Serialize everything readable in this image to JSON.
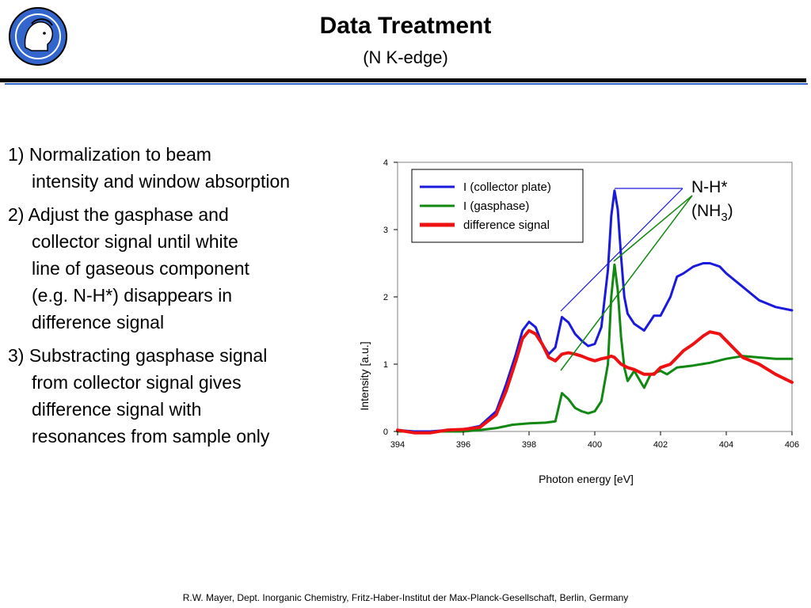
{
  "slide": {
    "title": "Data Treatment",
    "subtitle": "(N K-edge)",
    "footer": "R.W. Mayer, Dept. Inorganic Chemistry, Fritz-Haber-Institut der Max-Planck-Gesellschaft, Berlin, Germany",
    "logo_icon": "minerva-head-icon",
    "accent_color": "#3366cc"
  },
  "steps": [
    {
      "first": "1) Normalization to beam",
      "rest": [
        "intensity and window absorption"
      ]
    },
    {
      "first": "2) Adjust the gasphase and",
      "rest": [
        "collector signal until white",
        "line of gaseous component",
        "(e.g. N-H*) disappears in",
        "difference signal"
      ]
    },
    {
      "first": "3) Substracting gasphase signal",
      "rest": [
        "from collector signal gives",
        "difference signal with",
        "resonances from sample only"
      ]
    }
  ],
  "chart_data": {
    "type": "line",
    "xlabel": "Photon energy [eV]",
    "ylabel": "Intensity [a.u.]",
    "xlim": [
      394,
      406
    ],
    "ylim": [
      0,
      4
    ],
    "xticks": [
      394,
      396,
      398,
      400,
      402,
      404,
      406
    ],
    "yticks": [
      0,
      1,
      2,
      3,
      4
    ],
    "grid": false,
    "legend_placement": "top-left",
    "annotation": {
      "line1": "N-H*",
      "line2_main": "(NH",
      "line2_sub": "3",
      "line2_end": ")"
    },
    "series": [
      {
        "name": "I (collector plate)",
        "color": "#1a1adc",
        "x": [
          394,
          394.5,
          395,
          395.5,
          396,
          396.5,
          397,
          397.3,
          397.6,
          397.8,
          398,
          398.2,
          398.4,
          398.6,
          398.8,
          399,
          399.2,
          399.4,
          399.6,
          399.8,
          400,
          400.2,
          400.4,
          400.5,
          400.6,
          400.7,
          400.8,
          400.9,
          401,
          401.2,
          401.5,
          401.8,
          402,
          402.3,
          402.5,
          402.7,
          403,
          403.3,
          403.5,
          403.8,
          404,
          404.5,
          405,
          405.5,
          406
        ],
        "y": [
          0.02,
          0.0,
          0.0,
          0.02,
          0.03,
          0.08,
          0.3,
          0.7,
          1.15,
          1.5,
          1.63,
          1.55,
          1.3,
          1.15,
          1.25,
          1.7,
          1.62,
          1.45,
          1.35,
          1.27,
          1.3,
          1.55,
          2.4,
          3.2,
          3.58,
          3.3,
          2.6,
          2.0,
          1.75,
          1.6,
          1.5,
          1.72,
          1.72,
          2.0,
          2.3,
          2.35,
          2.45,
          2.5,
          2.5,
          2.45,
          2.35,
          2.15,
          1.95,
          1.85,
          1.8
        ]
      },
      {
        "name": "I (gasphase)",
        "color": "#118811",
        "x": [
          394,
          395,
          396,
          396.5,
          397,
          397.5,
          398,
          398.5,
          398.8,
          399,
          399.2,
          399.4,
          399.6,
          399.8,
          400,
          400.2,
          400.4,
          400.5,
          400.6,
          400.7,
          400.8,
          400.9,
          401,
          401.2,
          401.5,
          401.7,
          402,
          402.2,
          402.5,
          403,
          403.5,
          404,
          404.5,
          405,
          405.5,
          406
        ],
        "y": [
          0.0,
          0.0,
          0.0,
          0.02,
          0.05,
          0.1,
          0.12,
          0.13,
          0.15,
          0.57,
          0.48,
          0.35,
          0.3,
          0.27,
          0.3,
          0.45,
          1.0,
          2.0,
          2.48,
          2.1,
          1.4,
          0.95,
          0.75,
          0.9,
          0.65,
          0.85,
          0.9,
          0.85,
          0.95,
          0.98,
          1.02,
          1.08,
          1.12,
          1.1,
          1.08,
          1.08
        ]
      },
      {
        "name": "difference signal",
        "color": "#ee1111",
        "x": [
          394,
          394.5,
          395,
          395.5,
          396,
          396.5,
          397,
          397.3,
          397.6,
          397.8,
          398,
          398.2,
          398.4,
          398.6,
          398.8,
          399,
          399.2,
          399.4,
          399.6,
          399.8,
          400,
          400.2,
          400.4,
          400.5,
          400.6,
          400.7,
          400.8,
          401,
          401.2,
          401.5,
          401.8,
          402,
          402.3,
          402.5,
          402.7,
          403,
          403.3,
          403.5,
          403.8,
          404,
          404.5,
          405,
          405.5,
          406
        ],
        "y": [
          0.02,
          -0.02,
          -0.02,
          0.02,
          0.03,
          0.06,
          0.25,
          0.6,
          1.05,
          1.38,
          1.5,
          1.45,
          1.3,
          1.1,
          1.05,
          1.15,
          1.17,
          1.15,
          1.12,
          1.08,
          1.05,
          1.08,
          1.1,
          1.12,
          1.1,
          1.05,
          1.0,
          0.95,
          0.92,
          0.85,
          0.85,
          0.95,
          1.0,
          1.1,
          1.2,
          1.3,
          1.42,
          1.48,
          1.45,
          1.35,
          1.1,
          1.0,
          0.85,
          0.73
        ]
      }
    ]
  }
}
